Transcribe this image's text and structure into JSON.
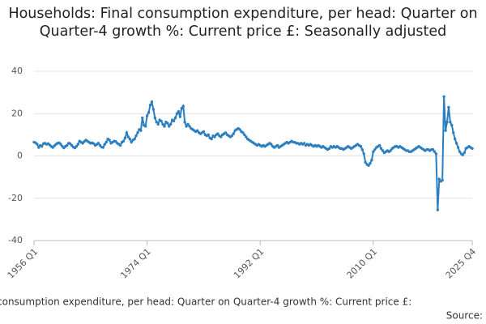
{
  "chart_data": {
    "type": "line",
    "title": "Households: Final consumption expenditure, per head: Quarter on Quarter-4 growth %: Current price £: Seasonally adjusted",
    "footer": "consumption expenditure, per head: Quarter on Quarter-4 growth %: Current price £:",
    "source": "Source:",
    "categories": [
      "1956 Q1",
      null,
      null,
      null,
      null,
      null,
      null,
      null,
      null,
      null,
      null,
      null,
      null,
      null,
      null,
      null,
      null,
      null,
      null,
      null,
      null,
      null,
      null,
      null,
      null,
      null,
      null,
      null,
      null,
      null,
      null,
      null,
      null,
      null,
      null,
      null,
      null,
      null,
      null,
      null,
      null,
      null,
      null,
      null,
      null,
      null,
      null,
      null,
      null,
      null,
      null,
      null,
      null,
      null,
      null,
      null,
      null,
      null,
      null,
      null,
      null,
      null,
      null,
      null,
      null,
      null,
      null,
      null,
      null,
      null,
      null,
      null,
      "1974 Q1",
      null,
      null,
      null,
      null,
      null,
      null,
      null,
      null,
      null,
      null,
      null,
      null,
      null,
      null,
      null,
      null,
      null,
      null,
      null,
      null,
      null,
      null,
      null,
      null,
      null,
      null,
      null,
      null,
      null,
      null,
      null,
      null,
      null,
      null,
      null,
      null,
      null,
      null,
      null,
      null,
      null,
      null,
      null,
      null,
      null,
      null,
      null,
      null,
      null,
      null,
      null,
      null,
      null,
      null,
      null,
      null,
      null,
      null,
      null,
      null,
      null,
      null,
      null,
      null,
      null,
      null,
      null,
      null,
      null,
      null,
      null,
      "1992 Q1",
      null,
      null,
      null,
      null,
      null,
      null,
      null,
      null,
      null,
      null,
      null,
      null,
      null,
      null,
      null,
      null,
      null,
      null,
      null,
      null,
      null,
      null,
      null,
      null,
      null,
      null,
      null,
      null,
      null,
      null,
      null,
      null,
      null,
      null,
      null,
      null,
      null,
      null,
      null,
      null,
      null,
      null,
      null,
      null,
      null,
      null,
      null,
      null,
      null,
      null,
      null,
      null,
      null,
      null,
      null,
      null,
      null,
      null,
      null,
      null,
      null,
      null,
      null,
      null,
      null,
      null,
      null,
      null,
      null,
      null,
      null,
      "2010 Q1",
      null,
      null,
      null,
      null,
      null,
      null,
      null,
      null,
      null,
      null,
      null,
      null,
      null,
      null,
      null,
      null,
      null,
      null,
      null,
      null,
      null,
      null,
      null,
      null,
      null,
      null,
      null,
      null,
      null,
      null,
      null,
      null,
      null,
      null,
      null,
      null,
      null,
      null,
      null,
      null,
      null,
      null,
      null,
      null,
      null,
      null,
      null,
      null,
      null,
      null,
      null,
      null,
      null,
      null,
      null,
      null,
      null,
      null,
      null,
      null,
      null,
      null,
      "2025 Q4"
    ],
    "values": [
      6.5,
      6.2,
      5.5,
      4.0,
      5.0,
      4.5,
      5.8,
      6.0,
      5.5,
      5.8,
      5.2,
      4.5,
      4.0,
      4.8,
      5.5,
      6.0,
      6.2,
      5.5,
      4.5,
      3.8,
      4.5,
      5.0,
      6.0,
      5.8,
      5.0,
      4.2,
      3.8,
      4.5,
      5.5,
      7.0,
      6.5,
      6.0,
      6.8,
      7.5,
      7.0,
      6.5,
      6.0,
      6.2,
      5.8,
      5.0,
      5.5,
      6.0,
      5.0,
      4.2,
      4.0,
      5.5,
      6.5,
      8.0,
      7.5,
      6.0,
      6.5,
      7.0,
      6.8,
      6.0,
      5.5,
      5.0,
      6.5,
      7.0,
      8.5,
      11.0,
      9.0,
      8.0,
      6.5,
      7.5,
      8.0,
      9.5,
      11.0,
      12.5,
      12.0,
      18.0,
      14.5,
      14.0,
      19.0,
      20.5,
      24.0,
      25.5,
      22.0,
      18.0,
      16.0,
      15.0,
      17.0,
      16.5,
      15.0,
      14.0,
      16.0,
      15.5,
      14.0,
      15.0,
      17.0,
      16.5,
      18.0,
      20.0,
      21.0,
      18.5,
      22.5,
      23.5,
      16.0,
      14.0,
      15.0,
      14.0,
      13.0,
      12.5,
      12.0,
      11.5,
      12.0,
      11.0,
      10.5,
      11.0,
      11.5,
      10.0,
      9.5,
      10.0,
      8.5,
      8.0,
      9.5,
      9.0,
      10.0,
      10.5,
      9.5,
      9.0,
      10.0,
      10.5,
      11.0,
      10.0,
      9.5,
      9.0,
      9.5,
      10.5,
      12.0,
      12.5,
      13.0,
      12.5,
      11.5,
      11.0,
      10.0,
      9.0,
      8.0,
      7.5,
      7.0,
      6.5,
      6.0,
      5.5,
      5.0,
      5.5,
      5.0,
      4.5,
      5.0,
      4.5,
      5.0,
      5.5,
      6.0,
      5.5,
      4.5,
      4.0,
      4.5,
      5.0,
      4.0,
      4.5,
      5.0,
      5.5,
      6.0,
      6.5,
      6.0,
      6.5,
      7.0,
      6.5,
      6.5,
      6.0,
      6.0,
      5.5,
      6.0,
      5.5,
      6.0,
      5.0,
      5.5,
      5.0,
      5.5,
      5.0,
      4.5,
      5.0,
      4.5,
      5.0,
      4.5,
      4.0,
      4.5,
      4.0,
      3.5,
      3.0,
      3.5,
      4.5,
      4.0,
      4.5,
      4.0,
      4.5,
      4.0,
      3.5,
      3.5,
      3.0,
      3.5,
      4.0,
      4.5,
      4.0,
      3.5,
      4.0,
      4.5,
      5.0,
      5.5,
      5.0,
      4.5,
      3.0,
      1.0,
      -3.0,
      -4.0,
      -4.5,
      -3.5,
      -2.0,
      2.0,
      3.0,
      4.0,
      4.5,
      5.0,
      3.5,
      2.5,
      1.5,
      2.0,
      2.5,
      2.0,
      2.5,
      3.5,
      4.0,
      4.5,
      4.5,
      4.0,
      4.5,
      4.0,
      3.5,
      3.0,
      2.5,
      2.5,
      2.0,
      2.0,
      2.5,
      3.0,
      3.5,
      4.0,
      4.5,
      4.0,
      3.5,
      3.0,
      2.5,
      3.0,
      3.0,
      2.5,
      3.0,
      3.0,
      2.0,
      1.0,
      -25.5,
      -11.0,
      -12.0,
      -11.5,
      28.0,
      12.0,
      16.0,
      23.0,
      16.0,
      14.5,
      11.0,
      8.0,
      6.0,
      4.0,
      2.0,
      1.0,
      0.5,
      1.5,
      3.5,
      4.0,
      4.5,
      4.0,
      3.5
    ],
    "color": "#2b7fc0",
    "ylim": [
      -40,
      40
    ],
    "yticks": [
      -40,
      -20,
      0,
      20,
      40
    ],
    "grid": true
  }
}
